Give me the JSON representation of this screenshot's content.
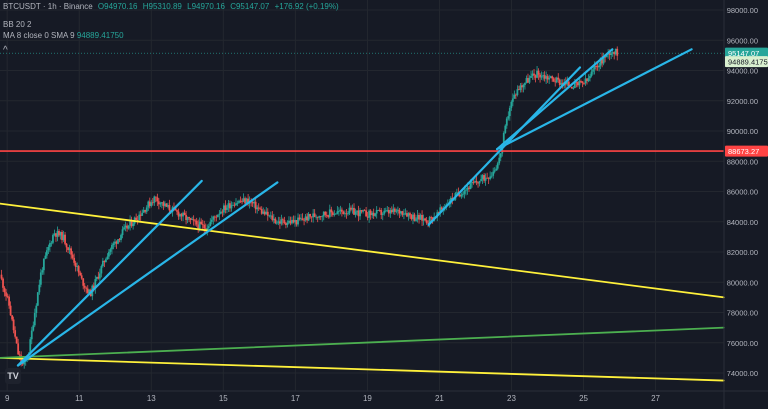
{
  "header": {
    "symbol": "BTCUSDT · 1h · Binance",
    "o": "O94970.16",
    "h": "H95310.89",
    "l": "L94970.16",
    "c": "C95147.07",
    "chg": "+176.92 (+0.19%)",
    "ind1": "BB 20 2",
    "ind2": "MA 8 close 0 SMA 9",
    "ind2_val": "94889.41750",
    "collapse": "^"
  },
  "logo": "TV",
  "colors": {
    "background": "#161a25",
    "grid": "#23272f",
    "axis_text": "#b2b5be",
    "up": "#26a69a",
    "down": "#ef5350",
    "yellow": "#fff13b",
    "blue": "#29b6e8",
    "green": "#4caf50",
    "red": "#ff4444"
  },
  "chart_data": {
    "type": "candlestick",
    "x_label_days": [
      "9",
      "11",
      "13",
      "15",
      "17",
      "19",
      "21",
      "23",
      "25",
      "27"
    ],
    "x_range_days": [
      8.8,
      28.9
    ],
    "y_ticks": [
      74000,
      76000,
      78000,
      80000,
      82000,
      84000,
      86000,
      88000,
      90000,
      92000,
      94000,
      96000,
      98000
    ],
    "ylim": [
      73500,
      98800
    ],
    "price_trace": [
      [
        8.8,
        80500
      ],
      [
        9.05,
        78500
      ],
      [
        9.3,
        75300
      ],
      [
        9.45,
        74400
      ],
      [
        9.6,
        75400
      ],
      [
        9.75,
        77800
      ],
      [
        9.95,
        80800
      ],
      [
        10.15,
        82300
      ],
      [
        10.3,
        83300
      ],
      [
        10.55,
        83000
      ],
      [
        10.85,
        81500
      ],
      [
        11.05,
        80200
      ],
      [
        11.3,
        79200
      ],
      [
        11.5,
        80300
      ],
      [
        11.8,
        82000
      ],
      [
        12.2,
        83300
      ],
      [
        12.6,
        84300
      ],
      [
        13.1,
        85600
      ],
      [
        13.4,
        85000
      ],
      [
        13.8,
        84500
      ],
      [
        14.1,
        84000
      ],
      [
        14.5,
        83600
      ],
      [
        14.9,
        84700
      ],
      [
        15.3,
        85300
      ],
      [
        15.7,
        85400
      ],
      [
        16.1,
        84600
      ],
      [
        16.5,
        84000
      ],
      [
        17.0,
        84000
      ],
      [
        17.5,
        84400
      ],
      [
        18.0,
        84600
      ],
      [
        18.5,
        84700
      ],
      [
        19.0,
        84500
      ],
      [
        19.5,
        84600
      ],
      [
        20.0,
        84700
      ],
      [
        20.3,
        84300
      ],
      [
        20.7,
        84100
      ],
      [
        20.95,
        84500
      ],
      [
        21.2,
        85200
      ],
      [
        21.5,
        85800
      ],
      [
        21.8,
        86300
      ],
      [
        22.1,
        86700
      ],
      [
        22.45,
        87200
      ],
      [
        22.65,
        88000
      ],
      [
        22.8,
        89800
      ],
      [
        22.95,
        91600
      ],
      [
        23.15,
        92700
      ],
      [
        23.4,
        93300
      ],
      [
        23.7,
        93800
      ],
      [
        23.95,
        93600
      ],
      [
        24.2,
        93400
      ],
      [
        24.5,
        93100
      ],
      [
        24.8,
        93000
      ],
      [
        25.1,
        93300
      ],
      [
        25.35,
        94300
      ],
      [
        25.55,
        94800
      ],
      [
        25.75,
        95300
      ],
      [
        25.95,
        95147
      ]
    ],
    "current_price": 95147.07,
    "current_price_label": "95147.07",
    "ma_value": 94889.4175,
    "ma_value_label": "94889.41750",
    "horizontal_level": 88673.27,
    "horizontal_level_label": "88673.27",
    "trend_lines": [
      {
        "color": "yellow",
        "points": [
          [
            8.8,
            85200
          ],
          [
            28.9,
            79000
          ]
        ]
      },
      {
        "color": "yellow",
        "points": [
          [
            8.8,
            75000
          ],
          [
            28.9,
            73500
          ]
        ]
      },
      {
        "color": "green",
        "points": [
          [
            8.8,
            75000
          ],
          [
            28.9,
            77000
          ]
        ]
      },
      {
        "color": "blue",
        "points": [
          [
            9.3,
            74500
          ],
          [
            14.4,
            86700
          ]
        ]
      },
      {
        "color": "blue",
        "points": [
          [
            9.3,
            74500
          ],
          [
            16.5,
            86600
          ]
        ]
      },
      {
        "color": "blue",
        "points": [
          [
            20.7,
            83800
          ],
          [
            24.9,
            94200
          ]
        ]
      },
      {
        "color": "blue",
        "points": [
          [
            22.6,
            88800
          ],
          [
            25.8,
            95400
          ]
        ]
      },
      {
        "color": "blue",
        "points": [
          [
            22.6,
            88800
          ],
          [
            28.0,
            95400
          ]
        ]
      }
    ]
  }
}
